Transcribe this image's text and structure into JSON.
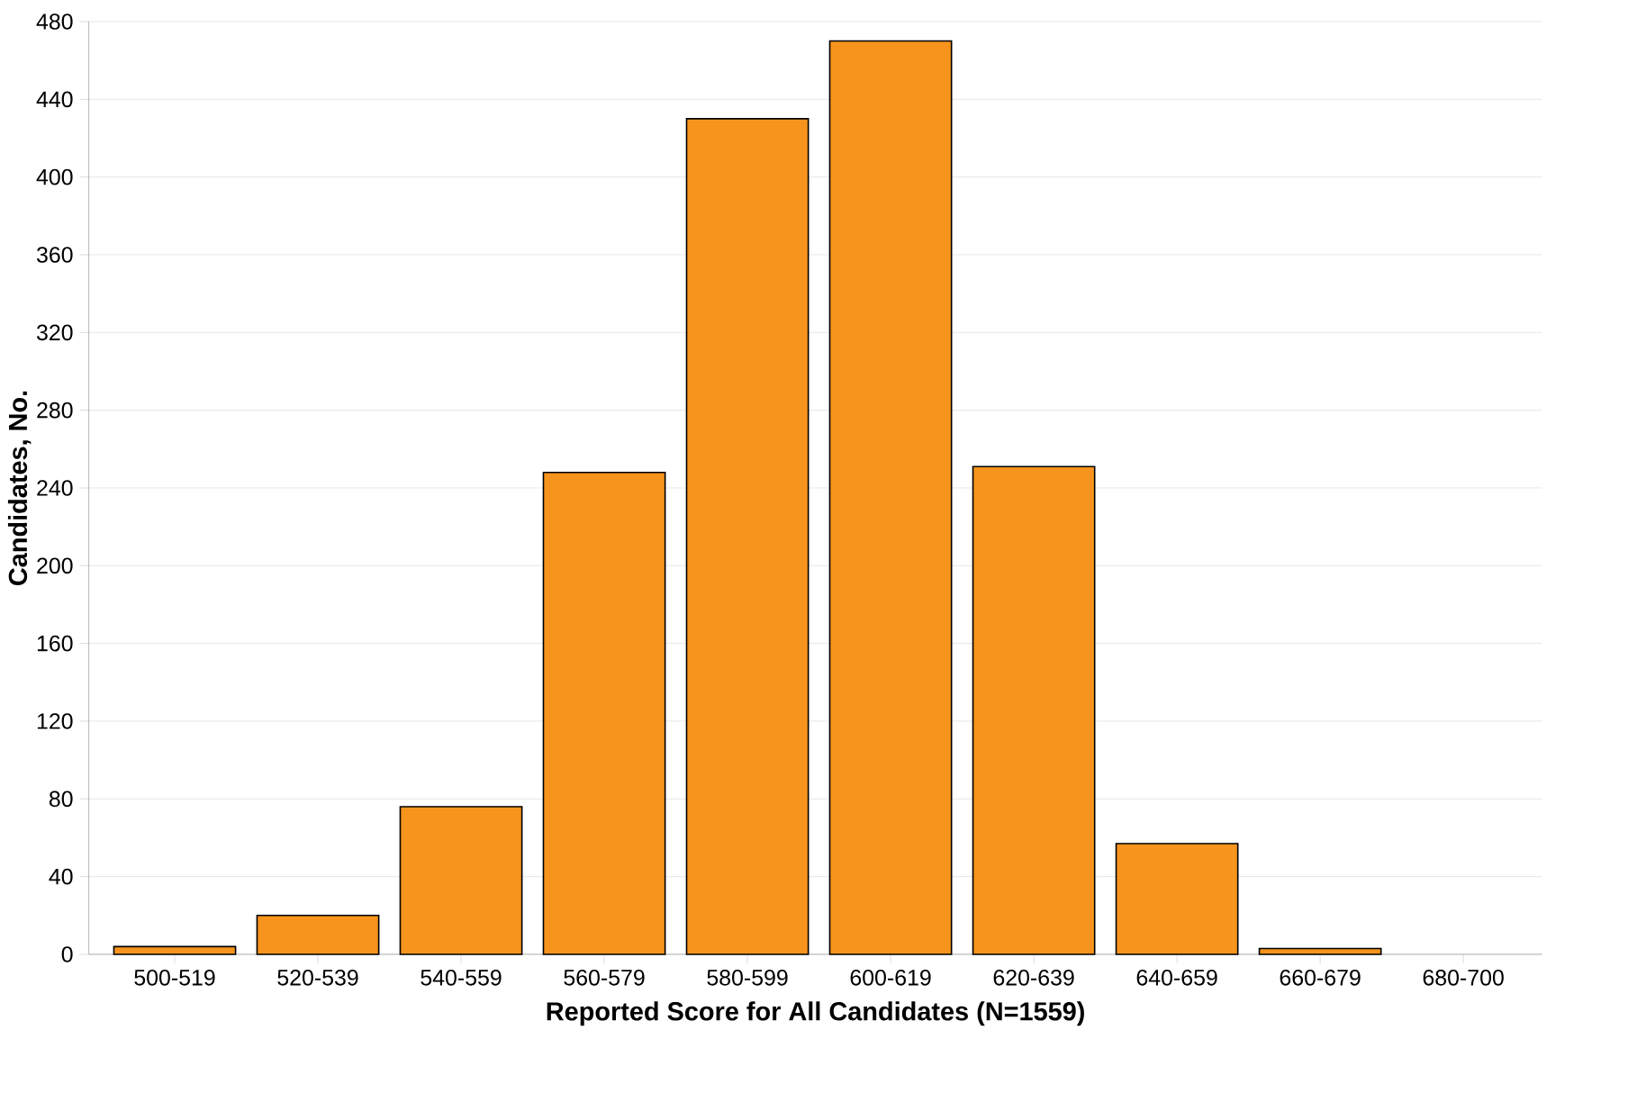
{
  "chart_data": {
    "type": "bar",
    "xlabel": "Reported Score for All Candidates (N=1559)",
    "ylabel": "Candidates, No.",
    "categories": [
      "500-519",
      "520-539",
      "540-559",
      "560-579",
      "580-599",
      "600-619",
      "620-639",
      "640-659",
      "660-679",
      "680-700"
    ],
    "values": [
      4,
      20,
      76,
      248,
      430,
      470,
      251,
      57,
      3,
      0
    ],
    "color": "#f7941d",
    "ylim": [
      0,
      480
    ],
    "yticks": [
      0,
      40,
      80,
      120,
      160,
      200,
      240,
      280,
      320,
      360,
      400,
      440,
      480
    ],
    "grid": "y"
  }
}
